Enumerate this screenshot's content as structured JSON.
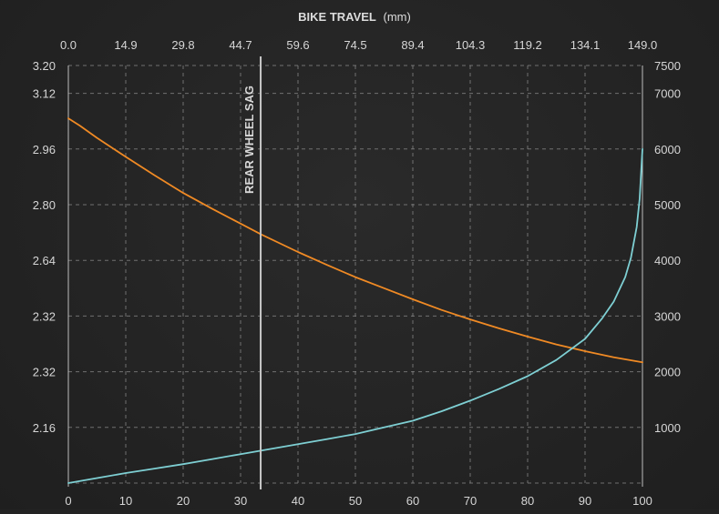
{
  "chart_data": {
    "type": "line",
    "title_bold": "BIKE TRAVEL",
    "title_unit": "(mm)",
    "x_bottom": {
      "range": [
        0,
        100
      ],
      "ticks": [
        0,
        10,
        20,
        30,
        40,
        50,
        60,
        70,
        80,
        90,
        100
      ]
    },
    "x_top": {
      "range": [
        0,
        149.0
      ],
      "tick_labels": [
        "0.0",
        "14.9",
        "29.8",
        "44.7",
        "59.6",
        "74.5",
        "89.4",
        "104.3",
        "119.2",
        "134.1",
        "149.0"
      ]
    },
    "y_left": {
      "tick_labels": [
        "3.20",
        "3.12",
        "2.96",
        "2.80",
        "2.64",
        "2.32",
        "2.32",
        "2.16"
      ]
    },
    "y_right": {
      "range": [
        0,
        7500
      ],
      "ticks": [
        7500,
        7000,
        6000,
        5000,
        4000,
        3000,
        2000,
        1000
      ]
    },
    "grid": true,
    "sag_marker": {
      "x": 33.5,
      "label": "REAR WHEEL SAG",
      "color": "#c8c8c8"
    },
    "series": [
      {
        "color": "#f08a24",
        "axis": "right",
        "x": [
          0,
          2,
          5,
          10,
          15,
          20,
          25,
          30,
          33.5,
          40,
          45,
          50,
          55,
          60,
          65,
          70,
          75,
          80,
          85,
          90,
          95,
          100
        ],
        "y": [
          6550,
          6420,
          6200,
          5860,
          5530,
          5210,
          4930,
          4660,
          4470,
          4150,
          3920,
          3700,
          3500,
          3300,
          3110,
          2940,
          2780,
          2630,
          2490,
          2370,
          2260,
          2170
        ]
      },
      {
        "color": "#7ecfd3",
        "axis": "right",
        "x": [
          0,
          5,
          10,
          15,
          20,
          25,
          30,
          35,
          40,
          45,
          50,
          55,
          60,
          65,
          70,
          75,
          80,
          85,
          90,
          93,
          95,
          97,
          98,
          99,
          99.5,
          100
        ],
        "y": [
          0,
          90,
          180,
          260,
          340,
          430,
          520,
          610,
          700,
          790,
          880,
          1000,
          1120,
          1290,
          1480,
          1690,
          1920,
          2210,
          2590,
          2960,
          3260,
          3700,
          4050,
          4600,
          5100,
          6000
        ]
      }
    ]
  }
}
